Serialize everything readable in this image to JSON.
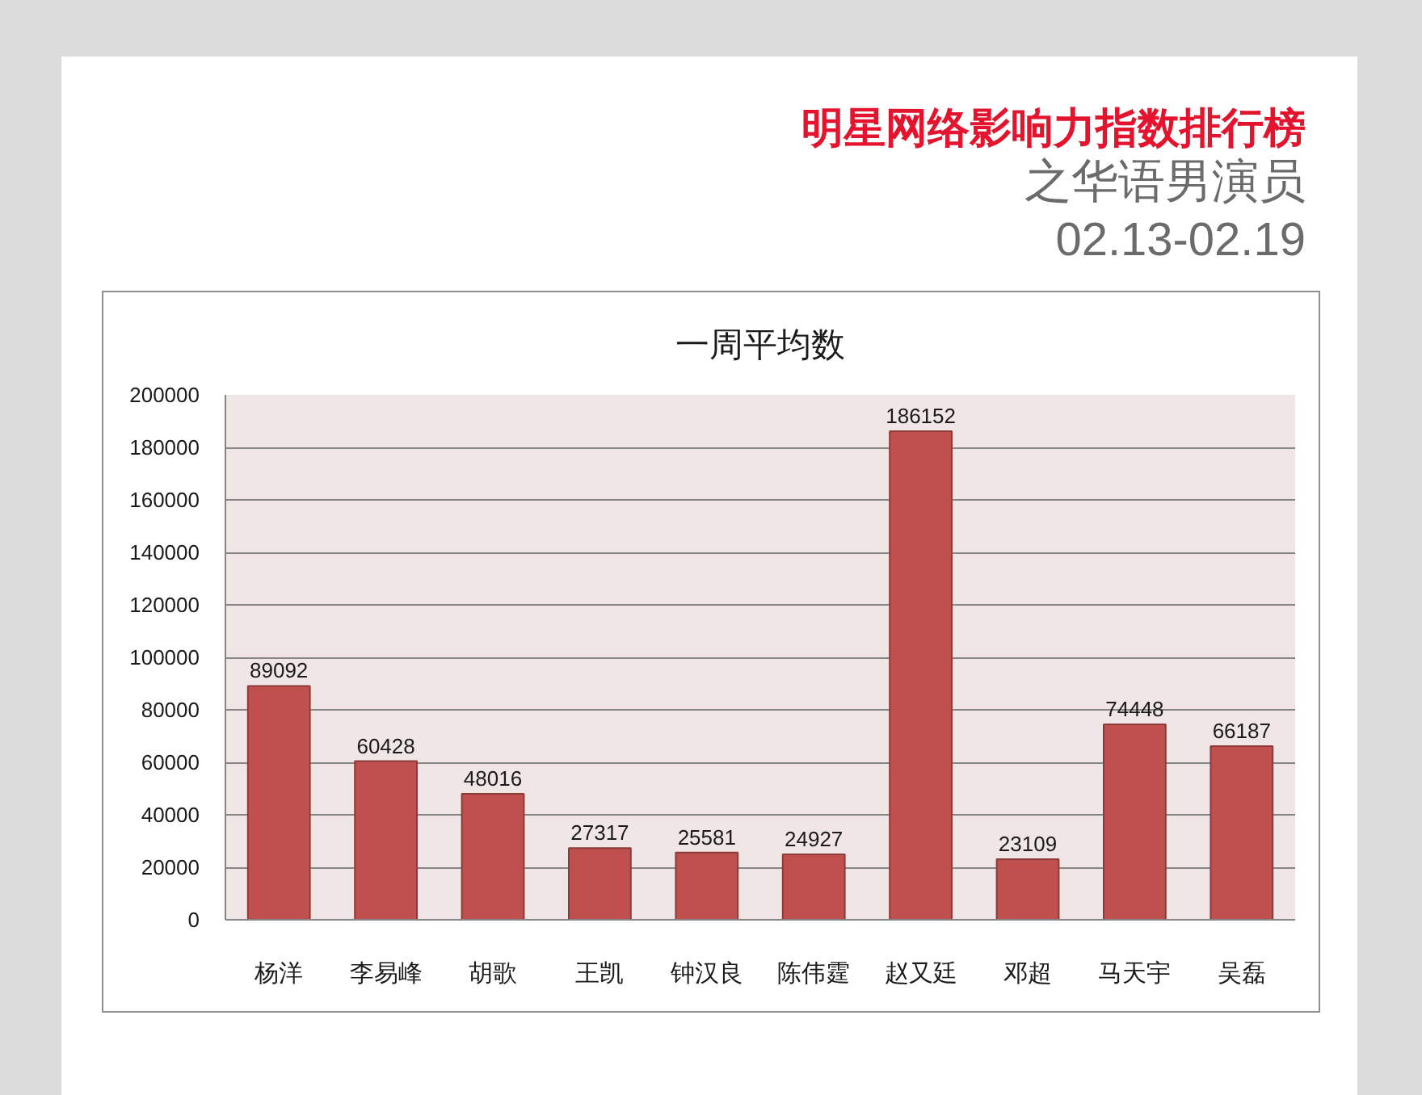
{
  "chart_data": {
    "type": "bar",
    "title": "明星网络影响力指数排行榜",
    "subtitle": "之华语男演员\n02.13-02.19",
    "annotations": [
      "一周平均数"
    ],
    "categories": [
      "杨洋",
      "李易峰",
      "胡歌",
      "王凯",
      "钟汉良",
      "陈伟霆",
      "赵又廷",
      "邓超",
      "马天宇",
      "吴磊"
    ],
    "values": [
      89092,
      60428,
      48016,
      27317,
      25581,
      24927,
      186152,
      23109,
      74448,
      66187
    ],
    "color": "#c0504d",
    "data_labels": true,
    "ylim": [
      0,
      200000
    ],
    "yticks": [
      0,
      20000,
      40000,
      60000,
      80000,
      100000,
      120000,
      140000,
      160000,
      180000,
      200000
    ],
    "grid": "y"
  }
}
